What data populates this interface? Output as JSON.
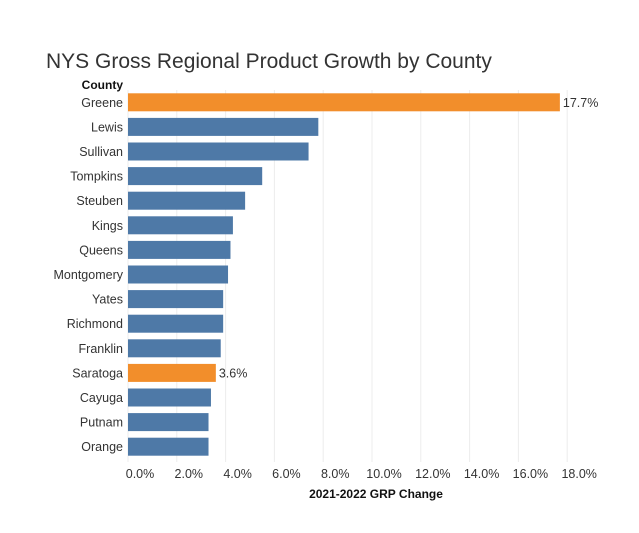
{
  "chart_data": {
    "type": "bar",
    "orientation": "horizontal",
    "title": "NYS Gross Regional Product Growth by County",
    "row_header": "County",
    "xlabel": "2021-2022 GRP Change",
    "categories": [
      "Greene",
      "Lewis",
      "Sullivan",
      "Tompkins",
      "Steuben",
      "Kings",
      "Queens",
      "Montgomery",
      "Yates",
      "Richmond",
      "Franklin",
      "Saratoga",
      "Cayuga",
      "Putnam",
      "Orange"
    ],
    "values": [
      17.7,
      7.8,
      7.4,
      5.5,
      4.8,
      4.3,
      4.2,
      4.1,
      3.9,
      3.9,
      3.8,
      3.6,
      3.4,
      3.3,
      3.3
    ],
    "highlighted": [
      "Greene",
      "Saratoga"
    ],
    "data_labels": {
      "Greene": "17.7%",
      "Saratoga": "3.6%"
    },
    "xlim": [
      0,
      20
    ],
    "xticks": [
      0,
      2,
      4,
      6,
      8,
      10,
      12,
      14,
      16,
      18
    ],
    "xtick_labels": [
      "0.0%",
      "2.0%",
      "4.0%",
      "6.0%",
      "8.0%",
      "10.0%",
      "12.0%",
      "14.0%",
      "16.0%",
      "18.0%"
    ],
    "grid": true,
    "colors": {
      "default": "#4e79a7",
      "highlight": "#f28e2b"
    }
  }
}
